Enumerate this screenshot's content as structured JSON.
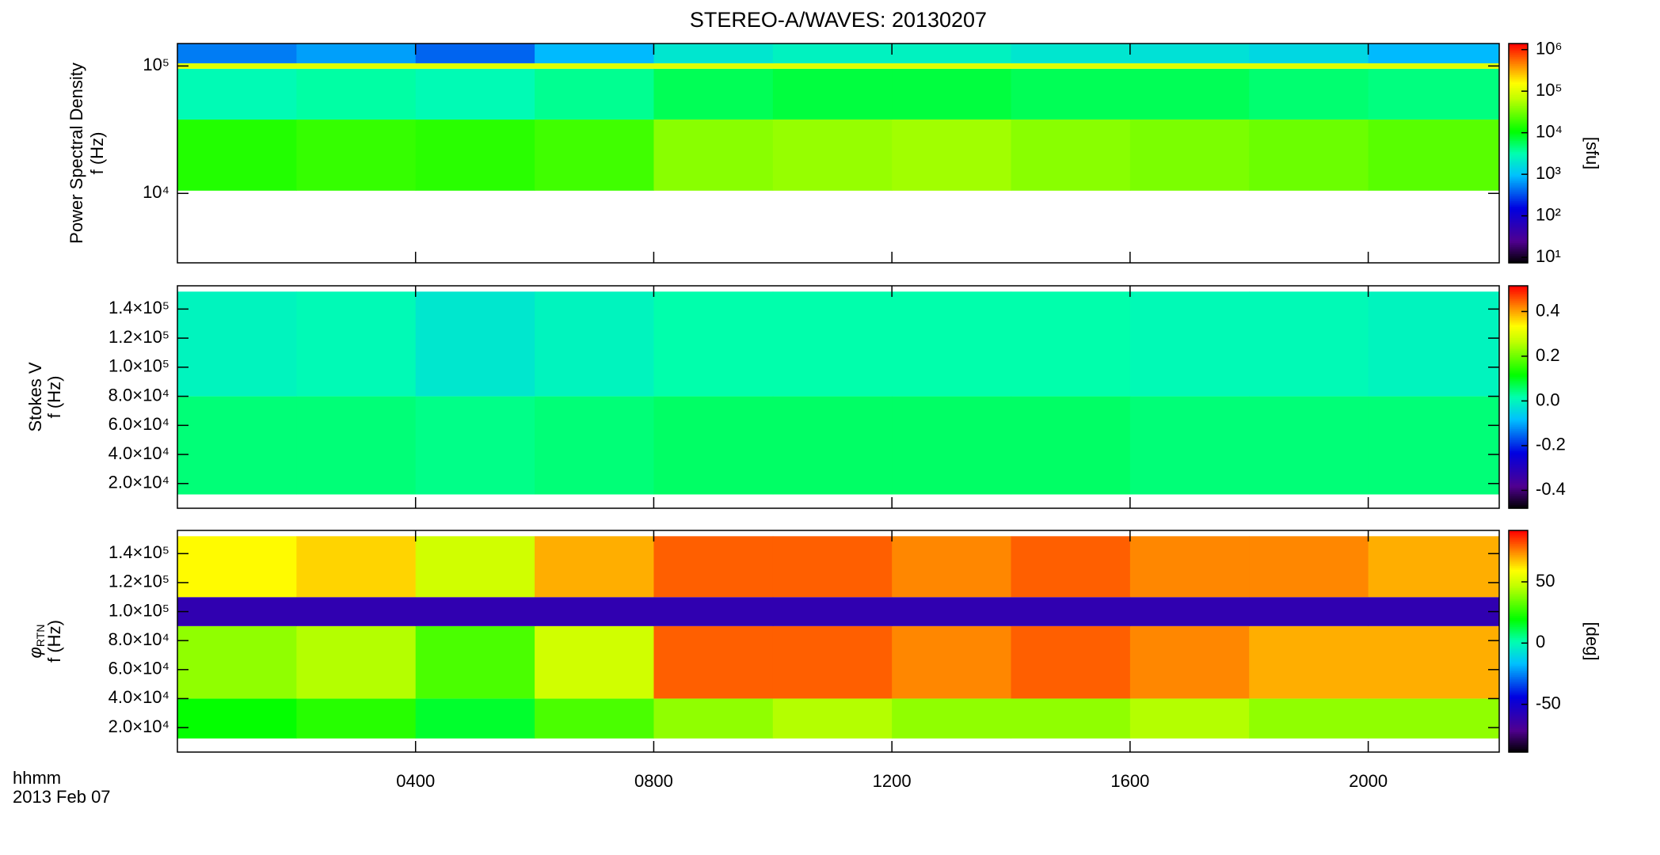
{
  "chart_data": [
    {
      "type": "heatmap",
      "title": "STEREO-A/WAVES: 20130207",
      "ylabel": "Power Spectral Density",
      "ylabel2": "f (Hz)",
      "colormap": "rainbow",
      "ylog": true,
      "ylim": [
        2850,
        150000
      ],
      "yticks": [
        {
          "value": 10000,
          "label": "10⁴"
        },
        {
          "value": 100000,
          "label": "10⁵"
        }
      ],
      "xlim": [
        0,
        22.2
      ],
      "x": [
        0,
        2,
        4,
        6,
        8,
        10,
        12,
        14,
        16,
        18,
        20,
        22.2
      ],
      "y": [
        10500,
        38000,
        95000,
        105000,
        150000
      ],
      "values": [
        [
          15000,
          18000,
          16000,
          20000,
          40000,
          45000,
          50000,
          40000,
          35000,
          30000,
          25000
        ],
        [
          3000,
          3500,
          3000,
          4000,
          6000,
          7000,
          7000,
          6000,
          6000,
          5000,
          4500
        ],
        [
          100000,
          100000,
          100000,
          100000,
          100000,
          100000,
          100000,
          100000,
          100000,
          100000,
          100000
        ],
        [
          500,
          700,
          400,
          900,
          2000,
          2500,
          2500,
          2000,
          1800,
          1500,
          900
        ]
      ],
      "colorbar": {
        "label": "[sfu]",
        "log": true,
        "lim": [
          7.4,
          1400000
        ],
        "ticks": [
          {
            "value": 10,
            "label": "10¹"
          },
          {
            "value": 100,
            "label": "10²"
          },
          {
            "value": 1000,
            "label": "10³"
          },
          {
            "value": 10000,
            "label": "10⁴"
          },
          {
            "value": 100000,
            "label": "10⁵"
          },
          {
            "value": 1000000,
            "label": "10⁶"
          }
        ]
      }
    },
    {
      "type": "heatmap",
      "ylabel": "Stokes V",
      "ylabel2": "f (Hz)",
      "colormap": "rainbow",
      "ylog": false,
      "ylim": [
        3000,
        156000
      ],
      "yticks": [
        {
          "value": 20000,
          "label": "2.0×10⁴"
        },
        {
          "value": 40000,
          "label": "4.0×10⁴"
        },
        {
          "value": 60000,
          "label": "6.0×10⁴"
        },
        {
          "value": 80000,
          "label": "8.0×10⁴"
        },
        {
          "value": 100000,
          "label": "1.0×10⁵"
        },
        {
          "value": 120000,
          "label": "1.2×10⁵"
        },
        {
          "value": 140000,
          "label": "1.4×10⁵"
        }
      ],
      "xlim": [
        0,
        22.2
      ],
      "x": [
        0,
        2,
        4,
        6,
        8,
        10,
        12,
        14,
        16,
        18,
        20,
        22.2
      ],
      "y": [
        12500,
        80000,
        152000
      ],
      "values": [
        [
          0.05,
          0.05,
          0.04,
          0.05,
          0.06,
          0.06,
          0.06,
          0.06,
          0.05,
          0.05,
          0.05
        ],
        [
          0.0,
          0.01,
          -0.02,
          0.0,
          0.02,
          0.02,
          0.02,
          0.02,
          0.01,
          0.01,
          0.0
        ]
      ],
      "colorbar": {
        "log": false,
        "lim": [
          -0.48,
          0.515
        ],
        "ticks": [
          -0.4,
          -0.2,
          {
            "value": 0,
            "label": "0.0"
          },
          0.2,
          0.4
        ]
      }
    },
    {
      "type": "heatmap",
      "ylabel_symbol": "φ",
      "ylabel_subscript": "RTN",
      "ylabel2": "f (Hz)",
      "colormap": "rainbow",
      "ylog": false,
      "ylim": [
        3100,
        156000
      ],
      "yticks": [
        {
          "value": 20000,
          "label": "2.0×10⁴"
        },
        {
          "value": 40000,
          "label": "4.0×10⁴"
        },
        {
          "value": 60000,
          "label": "6.0×10⁴"
        },
        {
          "value": 80000,
          "label": "8.0×10⁴"
        },
        {
          "value": 100000,
          "label": "1.0×10⁵"
        },
        {
          "value": 120000,
          "label": "1.2×10⁵"
        },
        {
          "value": 140000,
          "label": "1.4×10⁵"
        }
      ],
      "xlim": [
        0,
        22.2
      ],
      "x": [
        0,
        2,
        4,
        6,
        8,
        10,
        12,
        14,
        16,
        18,
        20,
        22.2
      ],
      "y": [
        12500,
        40000,
        90000,
        110000,
        152000
      ],
      "values": [
        [
          20,
          25,
          15,
          30,
          40,
          45,
          40,
          40,
          45,
          40,
          40
        ],
        [
          40,
          45,
          30,
          50,
          80,
          80,
          75,
          80,
          75,
          70,
          70
        ],
        [
          -60,
          -60,
          -60,
          -60,
          -60,
          -60,
          -60,
          -60,
          -60,
          -60,
          -60
        ],
        [
          60,
          65,
          50,
          70,
          80,
          80,
          75,
          80,
          75,
          75,
          70
        ]
      ],
      "xlabel": "hhmm",
      "date": "2013 Feb 07",
      "xticks": [
        {
          "value": 4,
          "label": "0400"
        },
        {
          "value": 8,
          "label": "0800"
        },
        {
          "value": 12,
          "label": "1200"
        },
        {
          "value": 16,
          "label": "1600"
        },
        {
          "value": 20,
          "label": "2000"
        }
      ],
      "colorbar": {
        "label": "[deg]",
        "log": false,
        "lim": [
          -89,
          92
        ],
        "ticks": [
          -50,
          0,
          50
        ]
      }
    }
  ]
}
